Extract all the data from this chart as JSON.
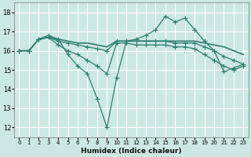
{
  "xlabel": "Humidex (Indice chaleur)",
  "bg_color": "#cce8e4",
  "grid_color": "#ffffff",
  "line_color": "#2e7d6e",
  "xlim": [
    -0.5,
    23.5
  ],
  "ylim": [
    11.5,
    18.5
  ],
  "yticks": [
    12,
    13,
    14,
    15,
    16,
    17,
    18
  ],
  "xticks": [
    0,
    1,
    2,
    3,
    4,
    5,
    6,
    7,
    8,
    9,
    10,
    11,
    12,
    13,
    14,
    15,
    16,
    17,
    18,
    19,
    20,
    21,
    22,
    23
  ],
  "lines": [
    {
      "x": [
        0,
        1,
        2,
        3,
        4,
        5,
        6,
        7,
        8,
        9,
        10,
        11,
        12,
        13,
        14,
        15,
        16,
        17,
        18,
        19,
        20,
        21,
        22,
        23
      ],
      "y": [
        16.0,
        16.0,
        16.6,
        16.8,
        16.6,
        15.8,
        15.2,
        14.8,
        13.5,
        12.0,
        14.6,
        16.5,
        16.6,
        16.8,
        17.1,
        17.8,
        17.5,
        17.7,
        17.1,
        16.5,
        16.0,
        14.9,
        15.1,
        15.3
      ],
      "marker": "+",
      "lw": 0.9
    },
    {
      "x": [
        0,
        1,
        2,
        3,
        4,
        5,
        6,
        7,
        8,
        9,
        10,
        11,
        12,
        13,
        14,
        15,
        16,
        17,
        18,
        19,
        20,
        21,
        22,
        23
      ],
      "y": [
        16.0,
        16.0,
        16.6,
        16.7,
        16.6,
        16.5,
        16.4,
        16.4,
        16.3,
        16.2,
        16.5,
        16.5,
        16.5,
        16.5,
        16.5,
        16.5,
        16.5,
        16.5,
        16.5,
        16.4,
        16.3,
        16.2,
        16.0,
        15.8
      ],
      "marker": "None",
      "lw": 1.2
    },
    {
      "x": [
        0,
        1,
        2,
        3,
        4,
        5,
        6,
        7,
        8,
        9,
        10,
        11,
        12,
        13,
        14,
        15,
        16,
        17,
        18,
        19,
        20,
        21,
        22,
        23
      ],
      "y": [
        16.0,
        16.0,
        16.6,
        16.7,
        16.5,
        16.4,
        16.3,
        16.2,
        16.1,
        16.0,
        16.5,
        16.5,
        16.5,
        16.5,
        16.5,
        16.5,
        16.4,
        16.4,
        16.4,
        16.2,
        16.0,
        15.7,
        15.5,
        15.3
      ],
      "marker": "+",
      "lw": 0.9
    },
    {
      "x": [
        0,
        1,
        2,
        3,
        4,
        5,
        6,
        7,
        8,
        9,
        10,
        11,
        12,
        13,
        14,
        15,
        16,
        17,
        18,
        19,
        20,
        21,
        22,
        23
      ],
      "y": [
        16.0,
        16.0,
        16.6,
        16.7,
        16.3,
        16.0,
        15.8,
        15.5,
        15.2,
        14.8,
        16.4,
        16.4,
        16.3,
        16.3,
        16.3,
        16.3,
        16.2,
        16.2,
        16.1,
        15.8,
        15.5,
        15.2,
        15.0,
        15.2
      ],
      "marker": "+",
      "lw": 0.9
    }
  ]
}
